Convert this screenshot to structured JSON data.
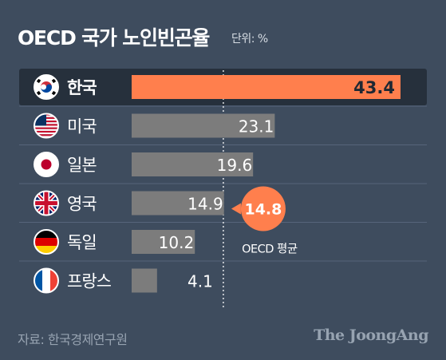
{
  "header": {
    "title": "OECD 국가 노인빈곤율",
    "unit": "단위: %"
  },
  "chart_data": {
    "type": "bar",
    "orientation": "horizontal",
    "categories": [
      "한국",
      "미국",
      "일본",
      "영국",
      "독일",
      "프랑스"
    ],
    "values": [
      43.4,
      23.1,
      19.6,
      14.9,
      10.2,
      4.1
    ],
    "value_labels": [
      "43.4",
      "23.1",
      "19.6",
      "14.9",
      "10.2",
      "4.1"
    ],
    "highlight_index": 0,
    "reference_line": {
      "value": 14.8,
      "label": "14.8",
      "caption": "OECD 평균"
    },
    "flag_icons": [
      "korea-flag-icon",
      "usa-flag-icon",
      "japan-flag-icon",
      "uk-flag-icon",
      "germany-flag-icon",
      "france-flag-icon"
    ],
    "colors": {
      "background": "#3e4c5e",
      "highlight_bar": "#ff7f4d",
      "bar": "#7c7c7c",
      "highlight_row": "#26303c"
    }
  },
  "footer": {
    "source": "자료: 한국경제연구원",
    "brand": "The JoongAng"
  }
}
